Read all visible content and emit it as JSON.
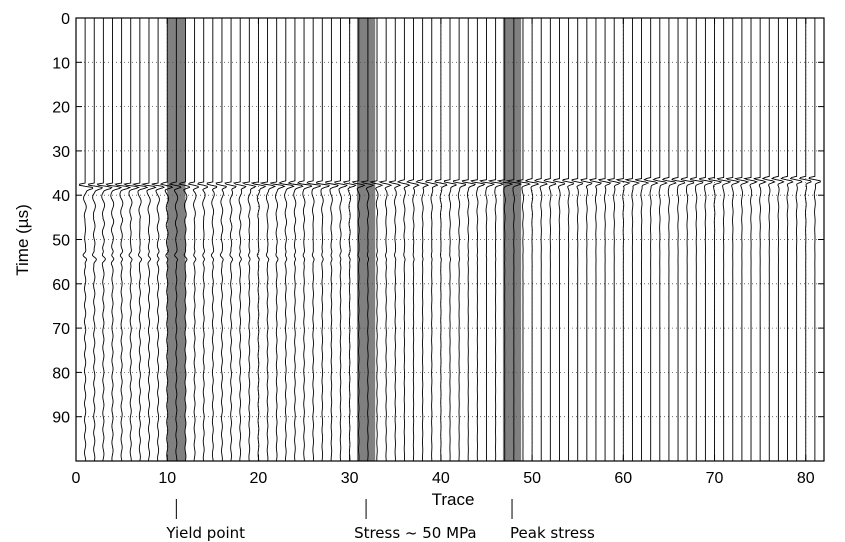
{
  "chart_data": {
    "type": "line",
    "title": "",
    "xlabel": "Trace",
    "ylabel": "Time (µs)",
    "xlim": [
      0,
      82
    ],
    "ylim": [
      0,
      100
    ],
    "y_inverted": true,
    "xticks": [
      "0",
      "10",
      "20",
      "30",
      "40",
      "50",
      "60",
      "70",
      "80"
    ],
    "yticks": [
      "0",
      "10",
      "20",
      "30",
      "40",
      "50",
      "60",
      "70",
      "80",
      "90"
    ],
    "grid": true,
    "trace_count": 81,
    "trace_spacing": 1,
    "first_arrival_us": {
      "trace_1": 38,
      "trace_81": 36.5
    },
    "secondary_event_us": 54,
    "highlight_color": "#808080",
    "highlighted_traces": [
      {
        "trace_range": [
          10,
          12
        ],
        "label": "Yield point",
        "marker_x": 11
      },
      {
        "trace_range": [
          30.8,
          32.8
        ],
        "label": "Stress ~ 50 MPa",
        "marker_x": 31.8
      },
      {
        "trace_range": [
          46.8,
          48.8
        ],
        "label": "Peak stress",
        "marker_x": 47.8
      }
    ]
  }
}
